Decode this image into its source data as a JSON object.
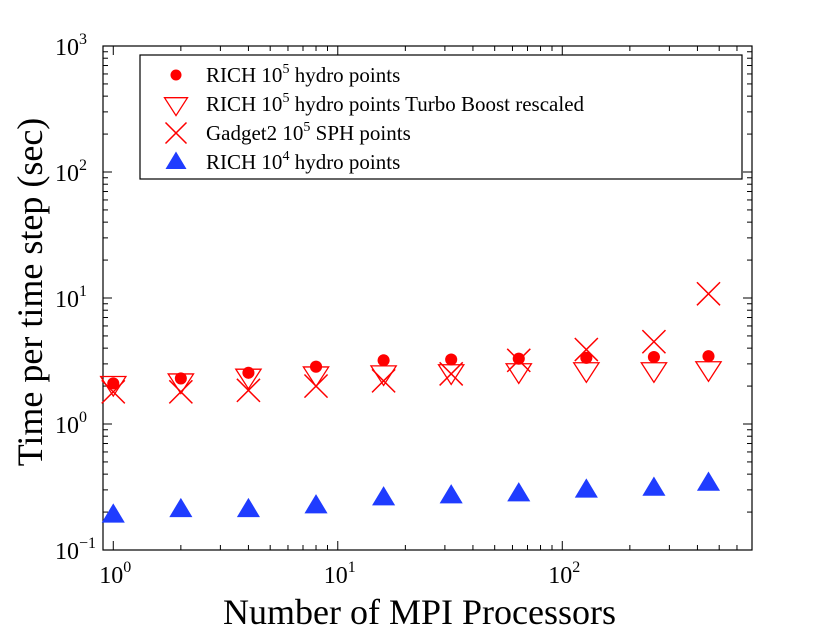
{
  "chart_data": {
    "type": "scatter",
    "xscale": "log",
    "yscale": "log",
    "xlabel": "Number of MPI Processors",
    "ylabel": "Time per time step (sec)",
    "xlim": [
      0.9,
      700
    ],
    "ylim": [
      0.1,
      1000
    ],
    "x_ticks": [
      {
        "value": 1,
        "base": "10",
        "exp": "0"
      },
      {
        "value": 10,
        "base": "10",
        "exp": "1"
      },
      {
        "value": 100,
        "base": "10",
        "exp": "2"
      }
    ],
    "y_ticks": [
      {
        "value": 0.1,
        "base": "10",
        "exp": "−1"
      },
      {
        "value": 1,
        "base": "10",
        "exp": "0"
      },
      {
        "value": 10,
        "base": "10",
        "exp": "1"
      },
      {
        "value": 100,
        "base": "10",
        "exp": "2"
      },
      {
        "value": 1000,
        "base": "10",
        "exp": "3"
      }
    ],
    "legend_position": "top-right",
    "series": [
      {
        "name": "RICH 10^5 hydro points",
        "legend": {
          "pre": "RICH 10",
          "sup": "5",
          "post": " hydro points"
        },
        "marker": "filled-circle",
        "color": "#ff0000",
        "x": [
          1,
          2,
          4,
          8,
          16,
          32,
          64,
          128,
          256,
          448
        ],
        "y": [
          2.1,
          2.3,
          2.55,
          2.85,
          3.2,
          3.25,
          3.3,
          3.35,
          3.4,
          3.45
        ]
      },
      {
        "name": "RICH 10^5 hydro points Turbo Boost rescaled",
        "legend": {
          "pre": "RICH 10",
          "sup": "5",
          "post": " hydro points Turbo Boost rescaled"
        },
        "marker": "open-down-triangle",
        "color": "#ff0000",
        "x": [
          1,
          2,
          4,
          8,
          16,
          32,
          64,
          128,
          256,
          448
        ],
        "y": [
          2.1,
          2.2,
          2.4,
          2.5,
          2.55,
          2.6,
          2.65,
          2.7,
          2.7,
          2.75
        ]
      },
      {
        "name": "Gadget2 10^5 SPH points",
        "legend": {
          "pre": "Gadget2 10",
          "sup": "5",
          "post": " SPH points"
        },
        "marker": "x",
        "color": "#ff0000",
        "x": [
          1,
          2,
          4,
          8,
          16,
          32,
          64,
          128,
          256,
          448
        ],
        "y": [
          1.8,
          1.8,
          1.85,
          2.0,
          2.2,
          2.5,
          3.2,
          3.9,
          4.5,
          10.8
        ]
      },
      {
        "name": "RICH 10^4 hydro points",
        "legend": {
          "pre": "RICH 10",
          "sup": "4",
          "post": " hydro points"
        },
        "marker": "filled-up-triangle",
        "color": "#1f3cff",
        "x": [
          1,
          2,
          4,
          8,
          16,
          32,
          64,
          128,
          256,
          448
        ],
        "y": [
          0.19,
          0.21,
          0.21,
          0.225,
          0.26,
          0.27,
          0.28,
          0.3,
          0.31,
          0.34
        ]
      }
    ]
  }
}
